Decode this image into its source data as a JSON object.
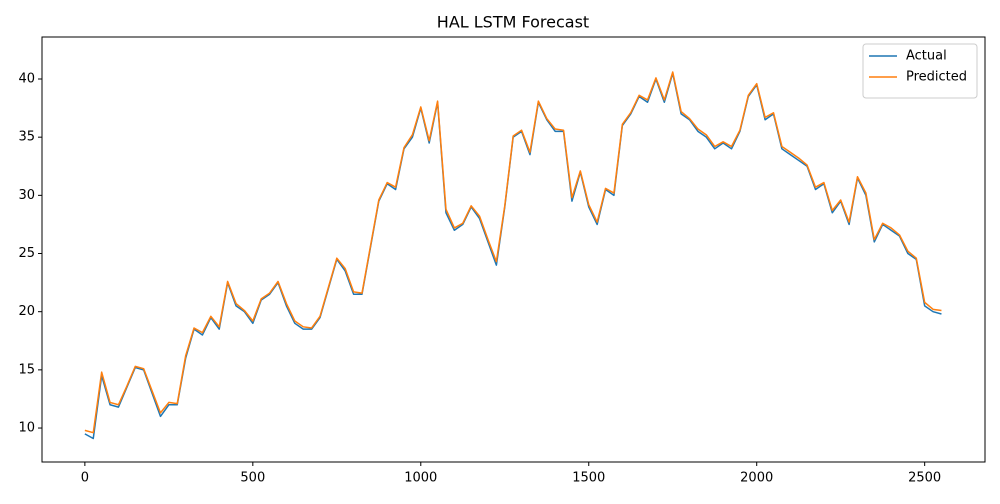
{
  "chart_data": {
    "type": "line",
    "title": "HAL LSTM Forecast",
    "x": [
      0,
      25,
      50,
      75,
      100,
      125,
      150,
      175,
      200,
      225,
      250,
      275,
      300,
      325,
      350,
      375,
      400,
      425,
      450,
      475,
      500,
      525,
      550,
      575,
      600,
      625,
      650,
      675,
      700,
      725,
      750,
      775,
      800,
      825,
      850,
      875,
      900,
      925,
      950,
      975,
      1000,
      1025,
      1050,
      1075,
      1100,
      1125,
      1150,
      1175,
      1200,
      1225,
      1250,
      1275,
      1300,
      1325,
      1350,
      1375,
      1400,
      1425,
      1450,
      1475,
      1500,
      1525,
      1550,
      1575,
      1600,
      1625,
      1650,
      1675,
      1700,
      1725,
      1750,
      1775,
      1800,
      1825,
      1850,
      1875,
      1900,
      1925,
      1950,
      1975,
      2000,
      2025,
      2050,
      2075,
      2100,
      2125,
      2150,
      2175,
      2200,
      2225,
      2250,
      2275,
      2300,
      2325,
      2350,
      2375,
      2400,
      2425,
      2450,
      2475,
      2500,
      2525,
      2550
    ],
    "series": [
      {
        "name": "Actual",
        "color": "#1f77b4",
        "values": [
          9.5,
          9.1,
          14.5,
          12,
          11.8,
          13.5,
          15.2,
          15,
          13,
          11,
          12,
          12,
          16,
          18.5,
          18,
          19.5,
          18.5,
          22.5,
          20.5,
          20,
          19,
          21,
          21.5,
          22.5,
          20.5,
          19,
          18.5,
          18.5,
          19.5,
          22,
          24.5,
          23.5,
          21.5,
          21.5,
          25.5,
          29.5,
          31,
          30.5,
          34,
          35,
          37.5,
          34.5,
          38,
          28.5,
          27,
          27.5,
          29,
          28,
          26,
          24,
          29,
          35,
          35.5,
          33.5,
          38,
          36.5,
          35.5,
          35.5,
          29.5,
          32,
          29,
          27.5,
          30.5,
          30,
          36,
          37,
          38.5,
          38,
          40,
          38,
          40.5,
          37,
          36.5,
          35.5,
          35,
          34,
          34.5,
          34,
          35.5,
          38.5,
          39.5,
          36.5,
          37,
          34,
          33.5,
          33,
          32.5,
          30.5,
          31,
          28.5,
          29.5,
          27.5,
          31.5,
          30,
          26,
          27.5,
          27,
          26.5,
          25,
          24.5,
          20.5,
          20,
          19.8
        ]
      },
      {
        "name": "Predicted",
        "color": "#ff7f0e",
        "values": [
          9.8,
          9.6,
          14.8,
          12.2,
          12,
          13.6,
          15.3,
          15.1,
          13.2,
          11.3,
          12.2,
          12.1,
          16.2,
          18.6,
          18.2,
          19.6,
          18.7,
          22.6,
          20.7,
          20.1,
          19.2,
          21.1,
          21.6,
          22.6,
          20.7,
          19.2,
          18.7,
          18.6,
          19.6,
          22.1,
          24.6,
          23.7,
          21.7,
          21.6,
          25.6,
          29.6,
          31.1,
          30.7,
          34.1,
          35.2,
          37.6,
          34.7,
          38.1,
          28.8,
          27.2,
          27.6,
          29.1,
          28.2,
          26.2,
          24.3,
          29.1,
          35.1,
          35.6,
          33.7,
          38.1,
          36.6,
          35.7,
          35.6,
          29.8,
          32.1,
          29.2,
          27.7,
          30.6,
          30.2,
          36.1,
          37.1,
          38.6,
          38.2,
          40.1,
          38.2,
          40.6,
          37.2,
          36.6,
          35.7,
          35.2,
          34.2,
          34.6,
          34.2,
          35.6,
          38.6,
          39.6,
          36.7,
          37.1,
          34.2,
          33.7,
          33.2,
          32.6,
          30.7,
          31.1,
          28.7,
          29.6,
          27.7,
          31.6,
          30.2,
          26.2,
          27.6,
          27.2,
          26.6,
          25.2,
          24.6,
          20.8,
          20.2,
          20.1
        ]
      }
    ],
    "xlim": [
      -127.6,
      2679.6
    ],
    "ylim": [
      7.08,
      43.61
    ],
    "xticks": [
      0,
      500,
      1000,
      1500,
      2000,
      2500
    ],
    "yticks": [
      10,
      15,
      20,
      25,
      30,
      35,
      40
    ],
    "grid": false,
    "legend": "upper right"
  }
}
